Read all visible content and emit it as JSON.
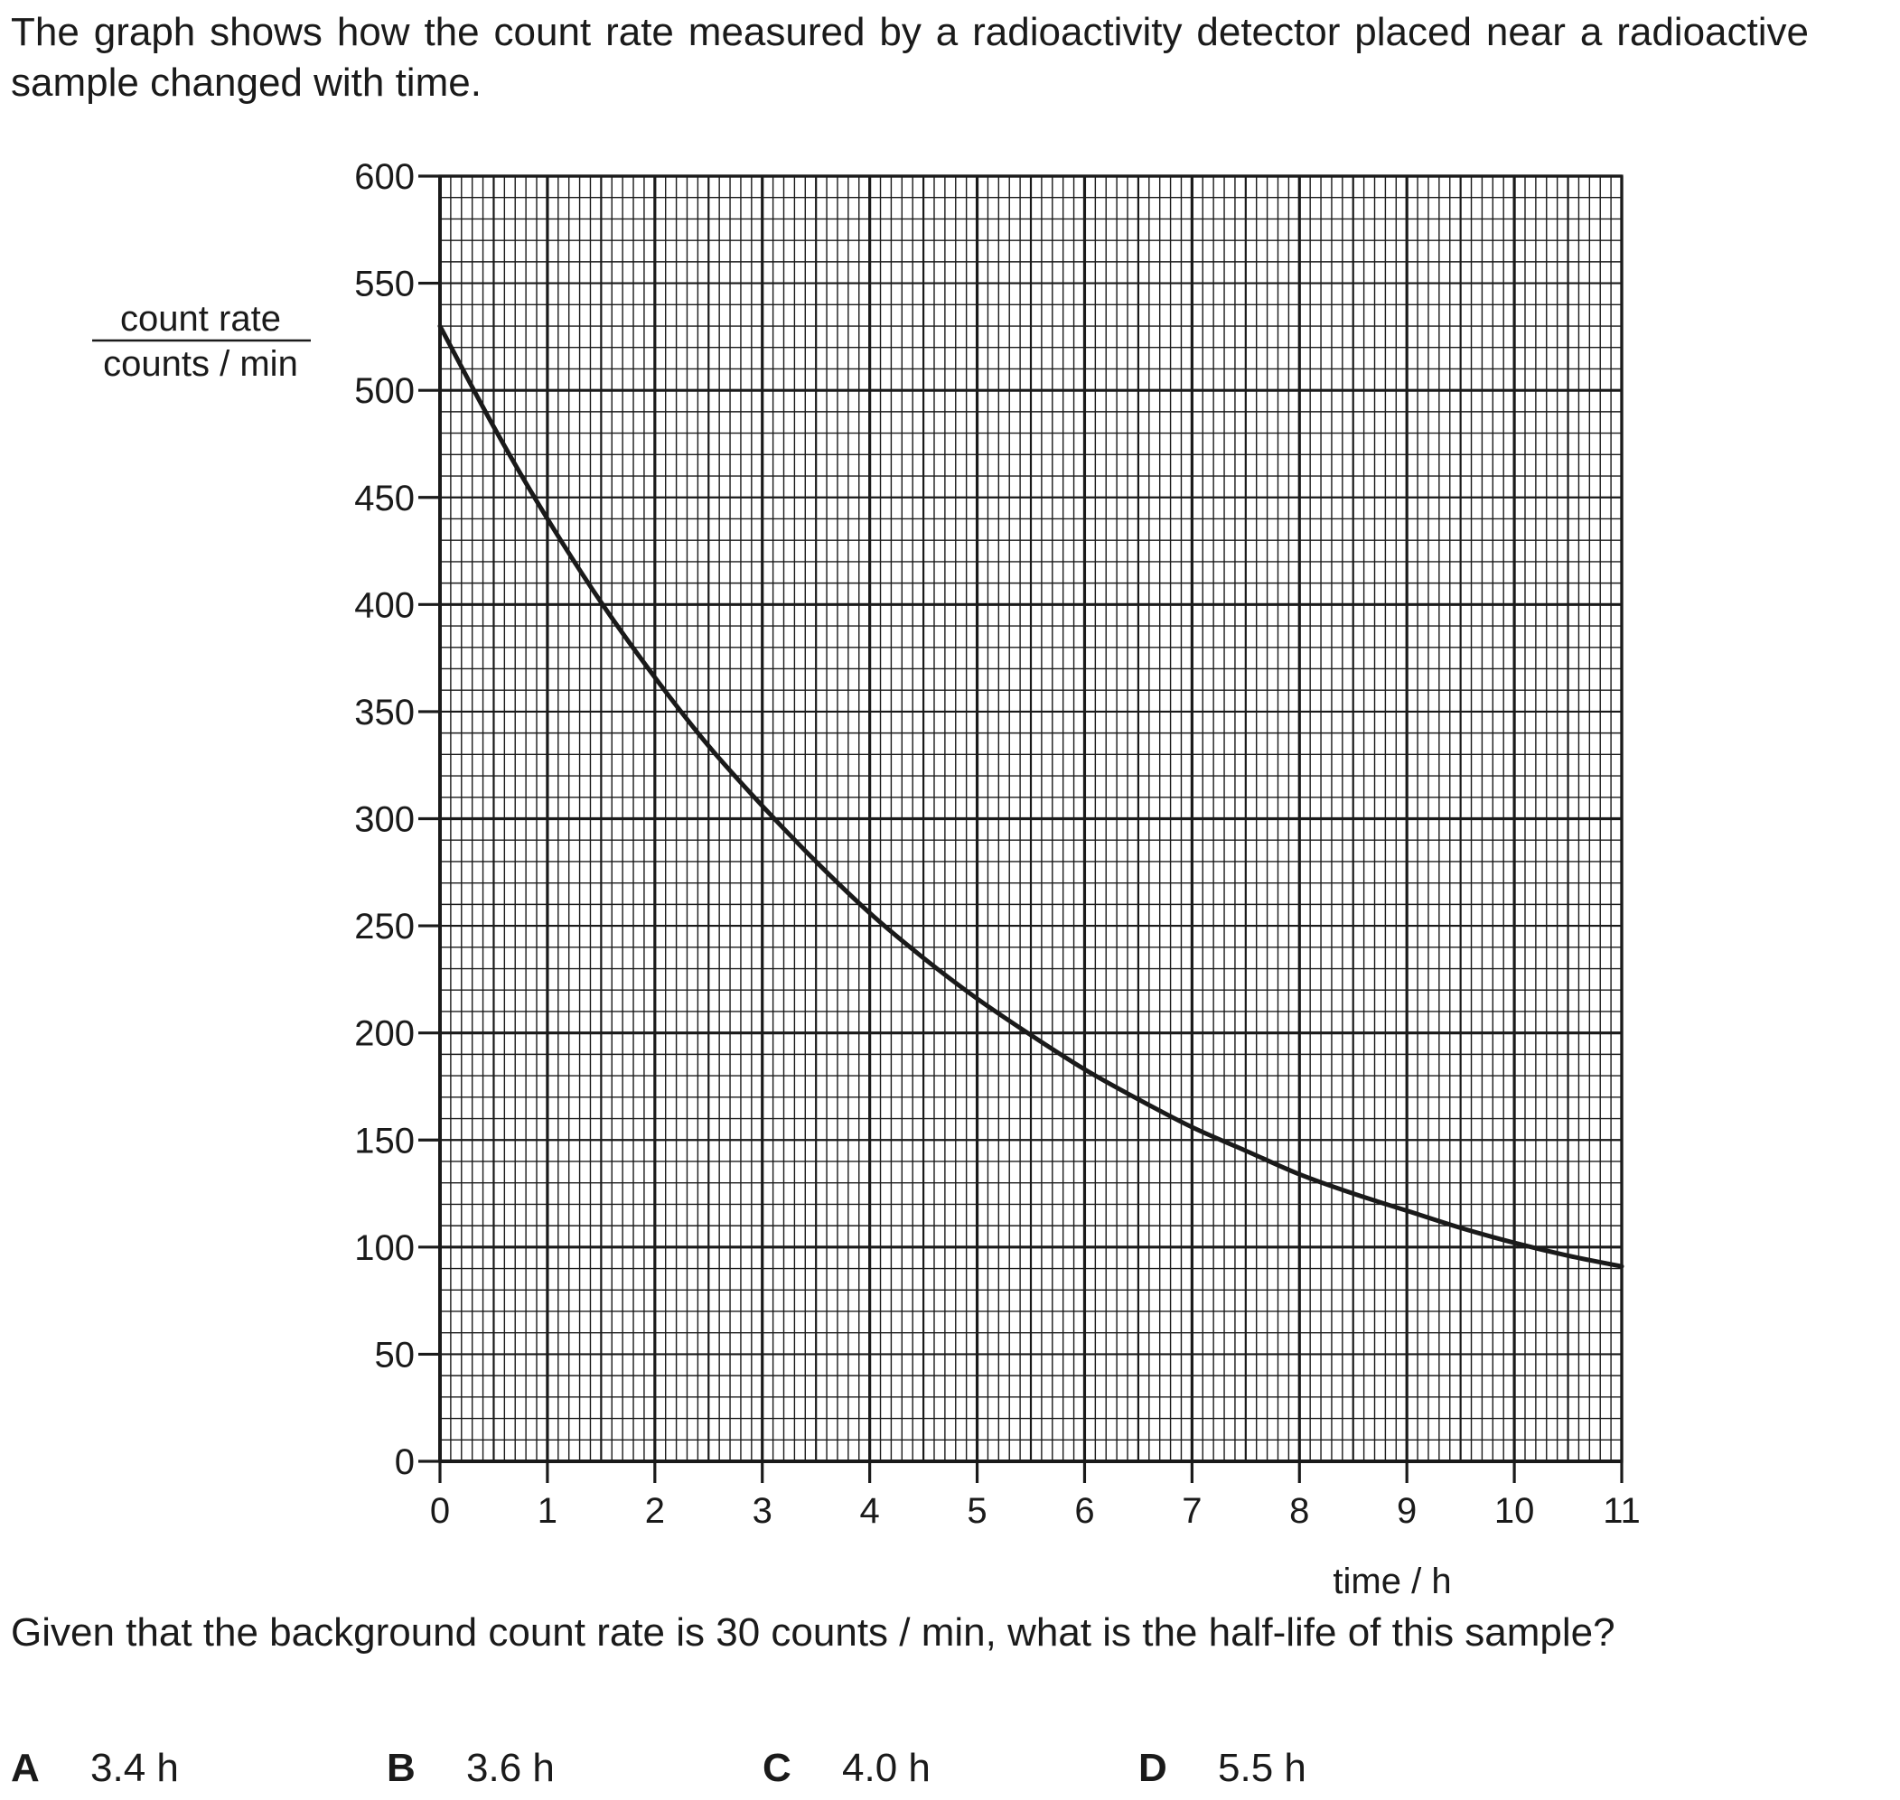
{
  "intro_text": "The graph shows how the count rate measured by a radioactivity detector placed near a radioactive sample changed with time.",
  "question_text": "Given that the background count rate is 30 counts / min, what is the half-life of this sample?",
  "options": [
    {
      "letter": "A",
      "value": "3.4 h"
    },
    {
      "letter": "B",
      "value": "3.6 h"
    },
    {
      "letter": "C",
      "value": "4.0 h"
    },
    {
      "letter": "D",
      "value": "5.5 h"
    }
  ],
  "chart_data": {
    "type": "line",
    "title": "",
    "ylabel_numerator": "count rate",
    "ylabel_denominator": "counts / min",
    "xlabel": "time / h",
    "xlim": [
      0,
      11
    ],
    "ylim": [
      0,
      600
    ],
    "xticks": [
      0,
      1,
      2,
      3,
      4,
      5,
      6,
      7,
      8,
      9,
      10,
      11
    ],
    "yticks": [
      0,
      50,
      100,
      150,
      200,
      250,
      300,
      350,
      400,
      450,
      500,
      550,
      600
    ],
    "grid": {
      "major_x": 1,
      "major_y": 100,
      "minor_x": 0.1,
      "minor_y": 10
    },
    "series": [
      {
        "x": [
          0,
          0.5,
          1,
          1.5,
          2,
          2.5,
          3,
          3.5,
          4,
          4.5,
          5,
          5.5,
          6,
          6.5,
          7,
          7.5,
          8,
          8.5,
          9,
          9.5,
          10,
          10.5,
          11
        ],
        "y": [
          530,
          483,
          440,
          401,
          366,
          334,
          306,
          280,
          256,
          235,
          216,
          199,
          183,
          169,
          156,
          145,
          134,
          125,
          117,
          109,
          102,
          96,
          91
        ]
      }
    ]
  }
}
